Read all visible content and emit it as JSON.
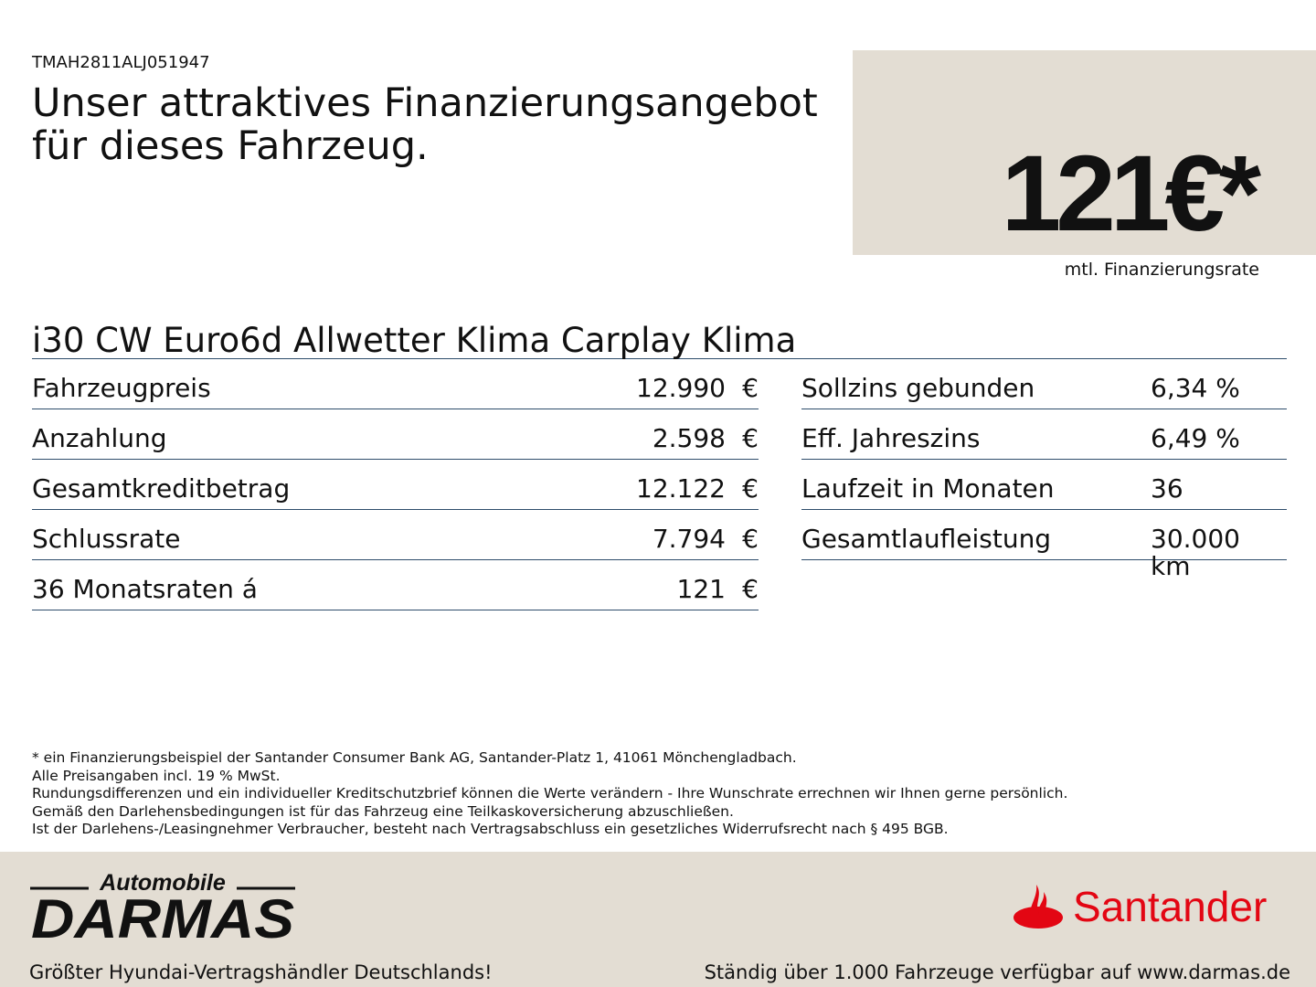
{
  "vin": "TMAH2811ALJ051947",
  "headline": "Unser attraktives Finanzierungsangebot für dieses Fahrzeug.",
  "price": {
    "amount": "121€*",
    "label": "mtl. Finanzierungsrate"
  },
  "model": "i30 CW Euro6d Allwetter Klima Carplay Klima",
  "left_rows": [
    {
      "label": "Fahrzeugpreis",
      "value": "12.990",
      "unit": "€"
    },
    {
      "label": "Anzahlung",
      "value": "2.598",
      "unit": "€"
    },
    {
      "label": "Gesamtkreditbetrag",
      "value": "12.122",
      "unit": "€"
    },
    {
      "label": "Schlussrate",
      "value": "7.794",
      "unit": "€"
    },
    {
      "label": "36 Monatsraten á",
      "value": "121",
      "unit": "€"
    }
  ],
  "right_rows": [
    {
      "label": "Sollzins gebunden",
      "value": "6,34 %"
    },
    {
      "label": "Eff. Jahreszins",
      "value": "6,49 %"
    },
    {
      "label": "Laufzeit in Monaten",
      "value": "36"
    },
    {
      "label": "Gesamtlaufleistung",
      "value": "30.000 km"
    }
  ],
  "footnotes": [
    "* ein Finanzierungsbeispiel der Santander Consumer Bank AG, Santander-Platz 1, 41061 Mönchengladbach.",
    "Alle Preisangaben incl. 19 % MwSt.",
    "Rundungsdifferenzen und ein individueller Kreditschutzbrief können die Werte verändern - Ihre Wunschrate errechnen wir Ihnen gerne persönlich.",
    "Gemäß den Darlehensbedingungen ist für das Fahrzeug eine Teilkaskoversicherung abzuschließen.",
    "Ist der Darlehens-/Leasingnehmer Verbraucher, besteht nach Vertragsabschluss ein gesetzliches Widerrufsrecht nach § 495 BGB."
  ],
  "footer": {
    "dealer_logo_top": "Automobile",
    "dealer_logo_main": "DARMAS",
    "slogan_left": "Größter Hyundai-Vertragshändler Deutschlands!",
    "bank_logo": "Santander",
    "slogan_right": "Ständig über 1.000 Fahrzeuge verfügbar auf www.darmas.de",
    "brand_color": "#e30613",
    "background": "#e3ddd3"
  }
}
